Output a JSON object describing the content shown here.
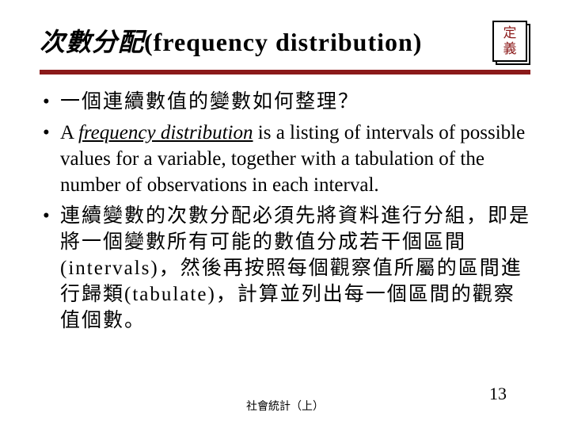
{
  "title": {
    "cjk": "次數分配",
    "en": "(frequency distribution)"
  },
  "badge": {
    "line1": "定",
    "line2": "義",
    "border_color": "#000000",
    "text_color": "#8b1a1a"
  },
  "divider_color": "#8b1a1a",
  "bullets": [
    {
      "text_cjk": "一個連續數值的變數如何整理？"
    },
    {
      "en_prefix": "A ",
      "en_italic_underline": "frequency distribution",
      "en_rest": " is a listing of intervals of possible values for a variable, together with a tabulation of the number of observations in each interval."
    },
    {
      "text_cjk": "連續變數的次數分配必須先將資料進行分組，即是將一個變數所有可能的數值分成若干個區間(intervals)，然後再按照每個觀察值所屬的區間進行歸類(tabulate)，計算並列出每一個區間的觀察值個數。"
    }
  ],
  "footer": "社會統計（上）",
  "page_number": "13",
  "colors": {
    "background": "#ffffff",
    "text": "#000000",
    "accent": "#8b1a1a"
  }
}
